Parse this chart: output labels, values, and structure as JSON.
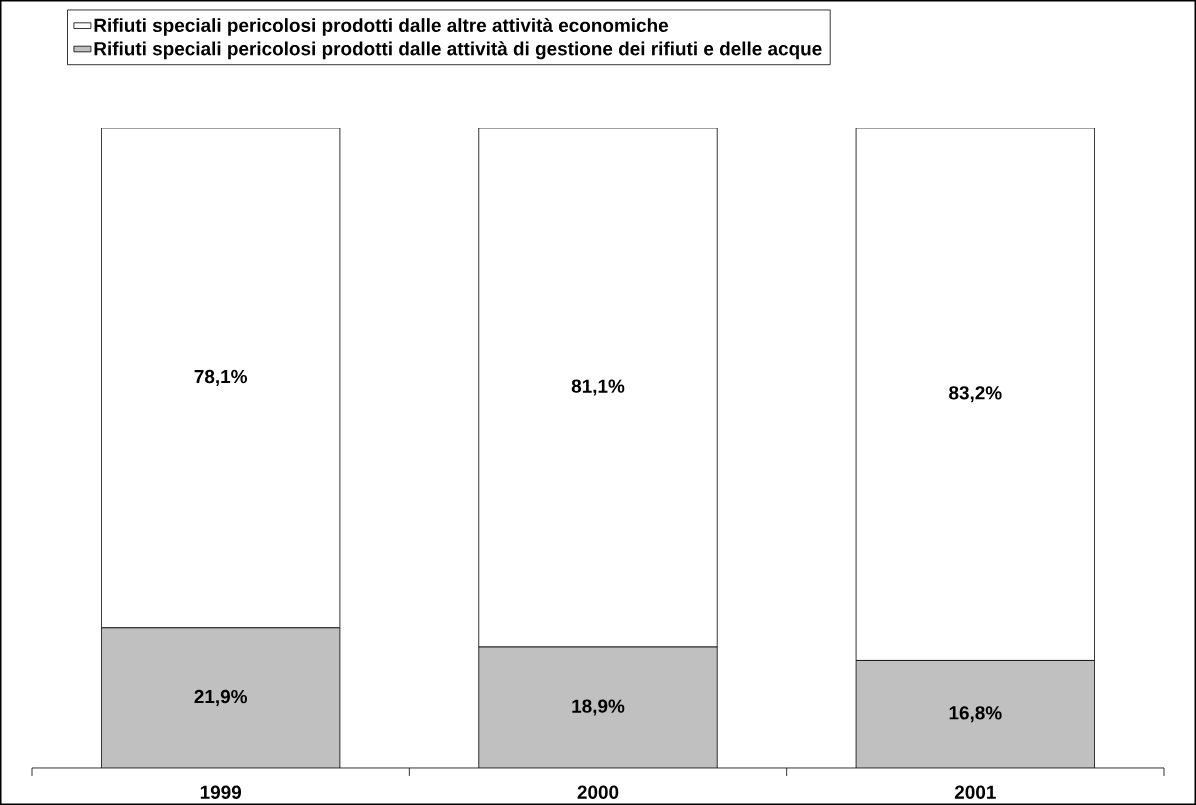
{
  "chart_data": {
    "type": "bar",
    "stacked": true,
    "legend": "top",
    "tick_labels": "x",
    "ylim": [
      0,
      100
    ],
    "categories": [
      "1999",
      "2000",
      "2001"
    ],
    "series": [
      {
        "name": "Rifiuti speciali pericolosi prodotti dalle attività di gestione dei rifiuti e delle acque",
        "color": "#c0c0c0",
        "values": [
          21.9,
          18.9,
          16.8
        ],
        "value_labels": [
          "21,9%",
          "18,9%",
          "16,8%"
        ]
      },
      {
        "name": "Rifiuti speciali pericolosi prodotti dalle altre attività economiche",
        "color": "#ffffff",
        "values": [
          78.1,
          81.1,
          83.2
        ],
        "value_labels": [
          "78,1%",
          "81,1%",
          "83,2%"
        ]
      }
    ]
  }
}
